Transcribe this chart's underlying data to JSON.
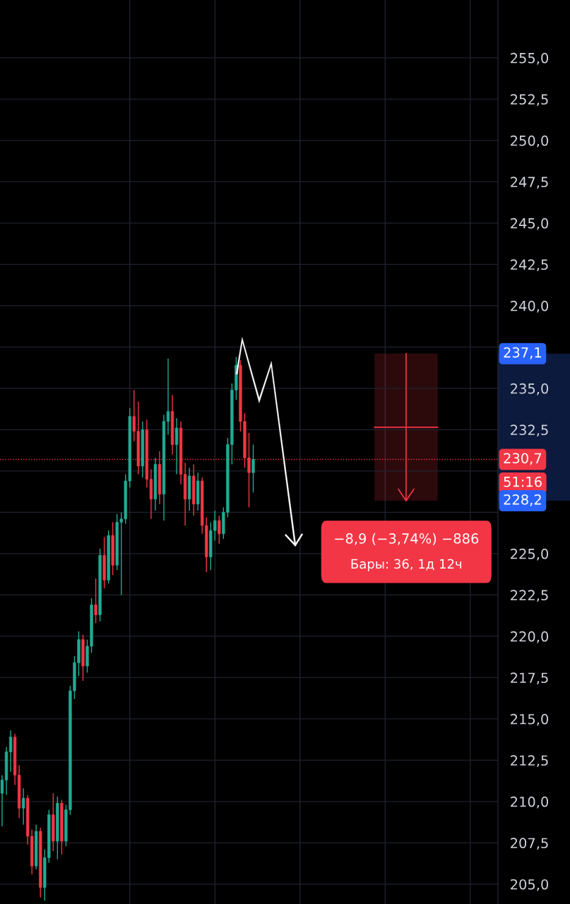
{
  "chart_data": {
    "type": "candlestick",
    "categories": [
      null,
      null,
      null,
      null,
      null,
      null,
      null,
      null,
      null,
      null,
      null,
      null,
      null,
      null,
      null,
      null,
      null,
      null,
      null,
      null,
      null,
      null,
      null,
      null,
      null,
      null,
      null,
      null,
      null,
      null,
      null,
      null,
      null,
      null,
      null,
      null,
      null,
      null,
      null,
      null,
      null,
      null,
      null,
      null,
      null,
      null,
      null,
      null,
      null,
      null,
      null,
      null,
      null,
      null,
      null,
      null,
      null,
      null,
      null,
      null,
      null,
      null,
      null,
      null,
      null,
      null,
      null,
      null,
      null,
      null,
      null,
      null,
      null,
      null,
      null,
      null,
      null,
      null,
      null,
      null,
      null,
      null,
      null,
      null,
      null,
      null,
      null,
      null,
      null,
      null,
      null,
      null,
      null,
      null,
      null,
      null,
      null,
      null,
      null,
      null,
      null,
      null,
      null,
      null,
      null,
      null,
      null,
      null,
      null,
      null,
      null,
      null,
      null,
      null,
      null,
      null,
      null
    ],
    "ohlc": [
      [
        210.5,
        211.6,
        208.5,
        211.3
      ],
      [
        211.3,
        213.3,
        210.4,
        213.0
      ],
      [
        213.0,
        214.3,
        211.8,
        213.9
      ],
      [
        213.9,
        214.1,
        211.0,
        211.6
      ],
      [
        211.6,
        212.2,
        209.0,
        209.6
      ],
      [
        209.6,
        210.8,
        208.6,
        210.2
      ],
      [
        210.2,
        210.4,
        207.4,
        207.9
      ],
      [
        207.9,
        208.3,
        205.6,
        206.1
      ],
      [
        206.1,
        208.6,
        205.9,
        208.2
      ],
      [
        208.2,
        208.4,
        204.2,
        204.8
      ],
      [
        204.8,
        207.1,
        204.0,
        206.6
      ],
      [
        206.6,
        209.5,
        206.3,
        209.2
      ],
      [
        209.2,
        210.5,
        207.0,
        207.6
      ],
      [
        207.6,
        210.3,
        206.5,
        209.9
      ],
      [
        209.9,
        210.1,
        206.8,
        207.6
      ],
      [
        207.6,
        209.8,
        207.3,
        209.5
      ],
      [
        209.5,
        217.0,
        209.2,
        216.7
      ],
      [
        216.7,
        218.8,
        216.2,
        218.4
      ],
      [
        218.4,
        220.3,
        217.6,
        219.8
      ],
      [
        219.8,
        220.1,
        217.3,
        218.2
      ],
      [
        218.2,
        219.8,
        217.8,
        219.4
      ],
      [
        219.4,
        222.3,
        219.0,
        221.9
      ],
      [
        221.9,
        223.5,
        220.8,
        221.3
      ],
      [
        221.3,
        225.3,
        220.9,
        224.9
      ],
      [
        224.9,
        226.0,
        222.9,
        223.4
      ],
      [
        223.4,
        226.4,
        223.2,
        226.1
      ],
      [
        226.1,
        226.9,
        223.7,
        224.3
      ],
      [
        224.3,
        227.4,
        224.0,
        226.9
      ],
      [
        226.9,
        227.5,
        222.5,
        227.1
      ],
      [
        227.1,
        229.8,
        226.8,
        229.4
      ],
      [
        229.4,
        233.8,
        229.0,
        233.3
      ],
      [
        233.3,
        234.9,
        231.8,
        232.4
      ],
      [
        232.4,
        234.2,
        229.8,
        230.3
      ],
      [
        230.3,
        233.0,
        229.6,
        232.5
      ],
      [
        232.5,
        233.1,
        229.0,
        229.5
      ],
      [
        229.5,
        230.1,
        227.1,
        228.3
      ],
      [
        228.3,
        230.8,
        227.6,
        230.4
      ],
      [
        230.4,
        231.2,
        228.0,
        228.6
      ],
      [
        228.6,
        233.4,
        227.0,
        233.0
      ],
      [
        233.0,
        236.8,
        232.2,
        233.6
      ],
      [
        233.6,
        234.6,
        231.0,
        231.6
      ],
      [
        231.6,
        233.2,
        229.8,
        232.6
      ],
      [
        232.6,
        233.0,
        229.2,
        229.8
      ],
      [
        229.8,
        230.5,
        226.7,
        228.3
      ],
      [
        228.3,
        230.2,
        227.6,
        229.7
      ],
      [
        229.7,
        230.4,
        227.3,
        228.0
      ],
      [
        228.0,
        229.9,
        227.6,
        229.4
      ],
      [
        229.4,
        229.6,
        226.2,
        226.7
      ],
      [
        226.7,
        227.2,
        223.9,
        224.8
      ],
      [
        224.8,
        226.9,
        224.0,
        226.4
      ],
      [
        226.4,
        227.6,
        225.8,
        227.0
      ],
      [
        227.0,
        227.3,
        225.6,
        226.2
      ],
      [
        226.2,
        227.8,
        225.9,
        227.5
      ],
      [
        227.5,
        232.0,
        227.2,
        231.6
      ],
      [
        231.6,
        235.3,
        230.4,
        234.9
      ],
      [
        234.9,
        236.9,
        234.3,
        236.4
      ],
      [
        236.4,
        236.7,
        232.4,
        233.0
      ],
      [
        233.0,
        233.5,
        230.2,
        230.8
      ],
      [
        230.8,
        232.3,
        227.8,
        229.9
      ],
      [
        229.9,
        231.6,
        228.7,
        230.7
      ],
      null,
      null,
      null,
      null,
      null,
      null,
      null,
      null,
      null,
      null,
      null,
      null,
      null,
      null,
      null,
      null,
      null,
      null,
      null,
      null,
      null,
      null,
      null,
      null,
      null,
      null,
      null,
      null,
      null,
      null,
      null,
      null,
      null,
      null,
      null,
      null,
      null,
      null,
      null,
      null,
      null,
      null,
      null,
      null,
      null,
      null,
      null,
      null,
      null,
      null,
      null,
      null,
      null,
      null,
      null,
      null,
      null
    ],
    "ylim": [
      203.8,
      258.5
    ],
    "yticks": [
      {
        "value": 205,
        "label": "205,0"
      },
      {
        "value": 207.5,
        "label": "207,5"
      },
      {
        "value": 210,
        "label": "210,0"
      },
      {
        "value": 212.5,
        "label": "212,5"
      },
      {
        "value": 215,
        "label": "215,0"
      },
      {
        "value": 217.5,
        "label": "217,5"
      },
      {
        "value": 220,
        "label": "220,0"
      },
      {
        "value": 222.5,
        "label": "222,5"
      },
      {
        "value": 225,
        "label": "225,0"
      },
      {
        "value": 227.5,
        "label": null
      },
      {
        "value": 230,
        "label": null
      },
      {
        "value": 232.5,
        "label": "232,5"
      },
      {
        "value": 235,
        "label": "235,0"
      },
      {
        "value": 237.5,
        "label": null
      },
      {
        "value": 240,
        "label": "240,0"
      },
      {
        "value": 242.5,
        "label": "242,5"
      },
      {
        "value": 245,
        "label": "245,0"
      },
      {
        "value": 247.5,
        "label": "247,5"
      },
      {
        "value": 250,
        "label": "250,0"
      },
      {
        "value": 252.5,
        "label": "252,5"
      },
      {
        "value": 255,
        "label": "255,0"
      }
    ],
    "ref_lines": [
      {
        "axis": "y",
        "value": 230.7,
        "label": "230,7",
        "color": "#f23645",
        "line_style": "dotted"
      }
    ],
    "bands": [
      {
        "axis": "y",
        "from": 228.2,
        "to": 237.1,
        "color": "#f23645"
      }
    ],
    "annotations": [
      "237,1",
      "228,2",
      "51:16",
      "−8,9 (−3,74%) −886",
      "Бары: 36, 1д 12ч"
    ],
    "grid": true
  }
}
